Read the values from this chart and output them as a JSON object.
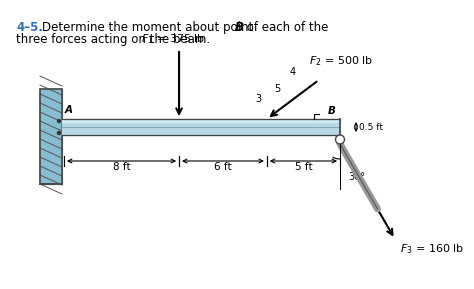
{
  "title_num": "4–5.",
  "title_body": "  Determine the moment about point ",
  "title_B": "B",
  "title_end": " of each of the",
  "title_line2": "three forces acting on the beam.",
  "title_color": "#2e74b5",
  "F1_label": "$F_1$ = 375 lb",
  "F2_label": "$F_2$ = 500 lb",
  "F3_label": "$F_3$ = 160 lb",
  "dim_8ft": "8 ft",
  "dim_6ft": "6 ft",
  "dim_5ft": "5 ft",
  "dim_05ft": "0.5 ft",
  "angle_label": "30°",
  "beam_color": "#b8d8e8",
  "beam_highlight": "#d0eaf5",
  "wall_color": "#88bcd0",
  "point_A": "A",
  "point_B": "B",
  "ratio_5": "5",
  "ratio_4": "4",
  "ratio_3": "3"
}
